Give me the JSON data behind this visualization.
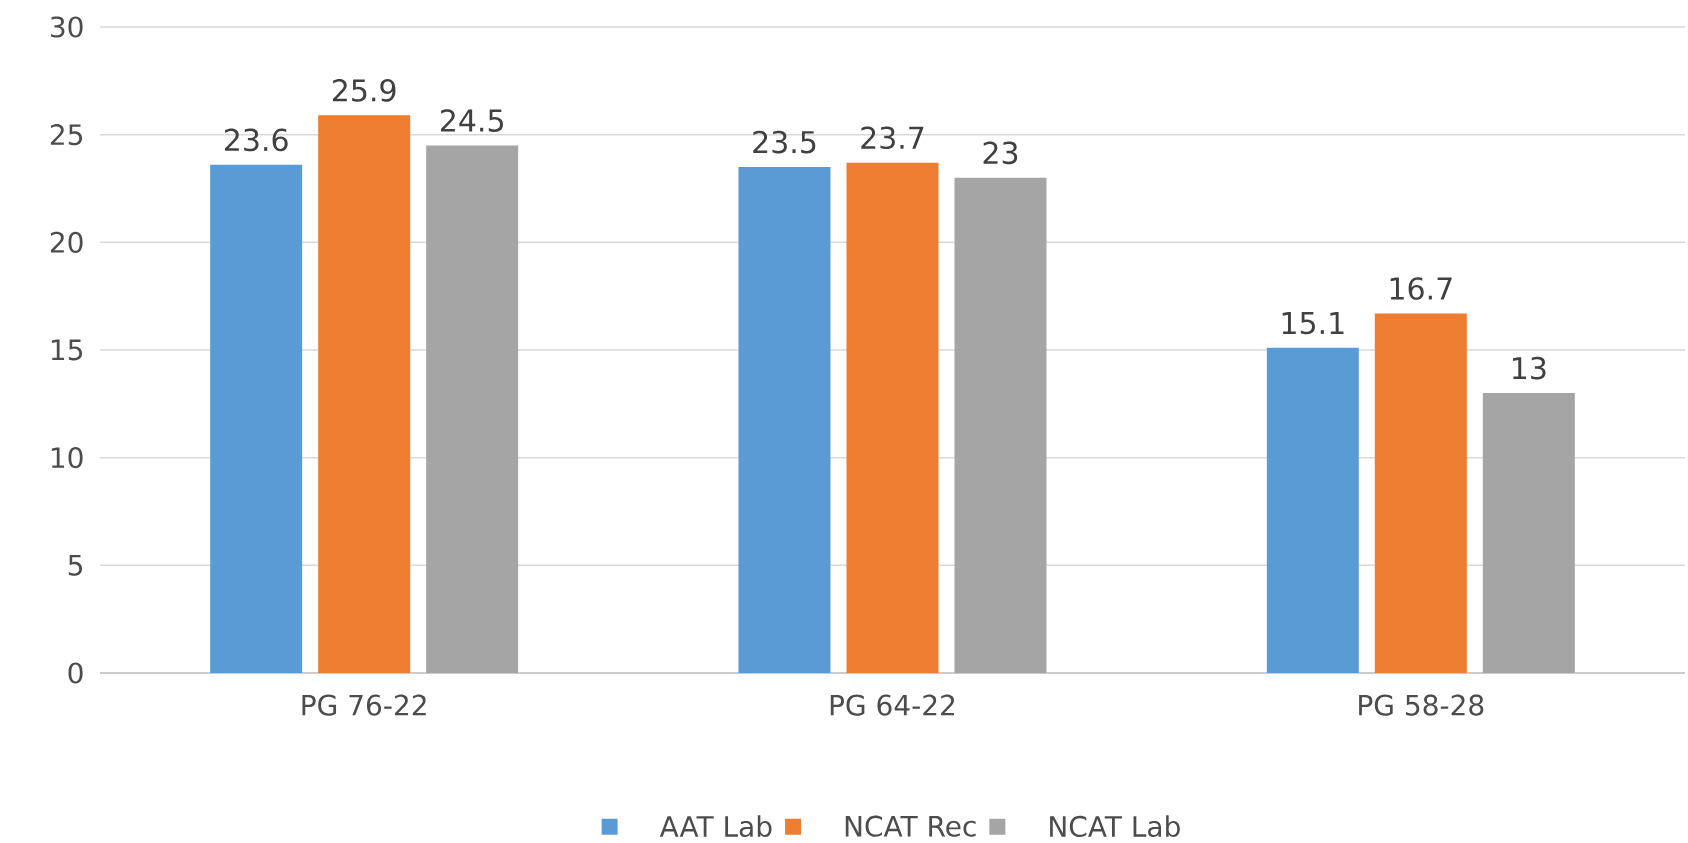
{
  "chart_data": {
    "type": "bar",
    "categories": [
      "PG 76-22",
      "PG 64-22",
      "PG 58-28"
    ],
    "series": [
      {
        "name": "AAT Lab",
        "color": "#5b9bd5",
        "values": [
          23.6,
          23.5,
          15.1
        ]
      },
      {
        "name": "NCAT Rec",
        "color": "#ed7d31",
        "values": [
          25.9,
          23.7,
          16.7
        ]
      },
      {
        "name": "NCAT Lab",
        "color": "#a5a5a5",
        "values": [
          24.5,
          23,
          13
        ]
      }
    ],
    "ylim": [
      0,
      30
    ],
    "yticks": [
      0,
      5,
      10,
      15,
      20,
      25,
      30
    ],
    "grid": "y",
    "legend": "bottom",
    "data_labels": true
  }
}
